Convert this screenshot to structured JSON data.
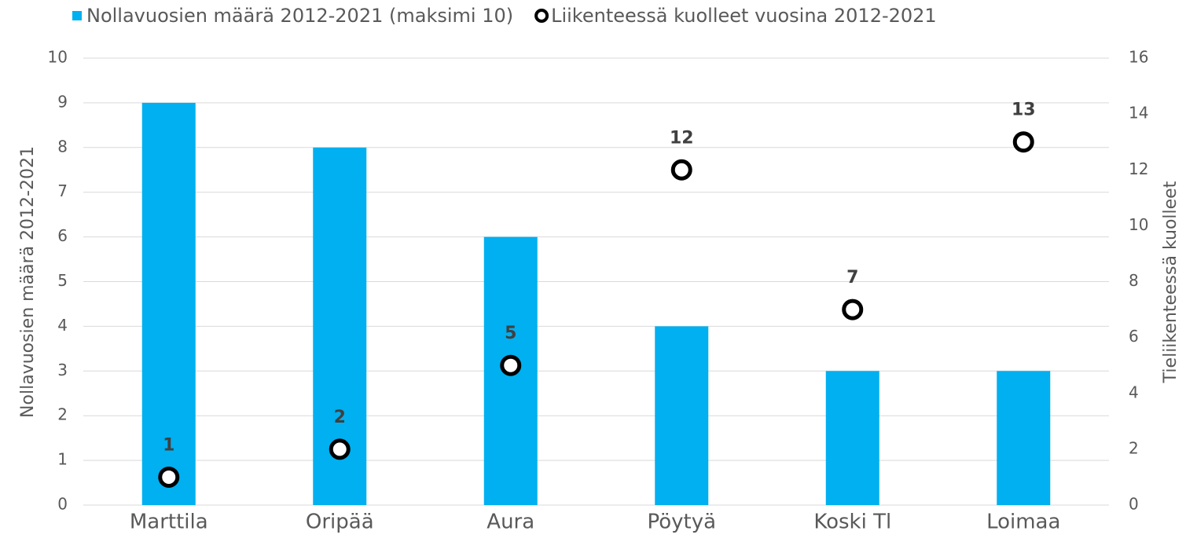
{
  "chart_data": {
    "type": "bar",
    "categories": [
      "Marttila",
      "Oripää",
      "Aura",
      "Pöytyä",
      "Koski Tl",
      "Loimaa"
    ],
    "series": [
      {
        "name": "Nollavuosien määrä 2012-2021 (maksimi 10)",
        "type": "bar",
        "color": "#00b0f0",
        "values": [
          9,
          8,
          6,
          4,
          3,
          3
        ]
      },
      {
        "name": "Liikenteessä kuolleet vuosina 2012-2021",
        "type": "scatter",
        "axis": "y2",
        "color": "#000000",
        "values": [
          1,
          2,
          5,
          12,
          7,
          13
        ]
      }
    ],
    "ylabel": "Nollavuosien määrä 2012-2021",
    "y2label": "Tieliikenteessä kuolleet",
    "ylim": [
      0,
      10
    ],
    "yticks": [
      0,
      1,
      2,
      3,
      4,
      5,
      6,
      7,
      8,
      9,
      10
    ],
    "y2lim": [
      0,
      16
    ],
    "y2ticks": [
      0,
      2,
      4,
      6,
      8,
      10,
      12,
      14,
      16
    ],
    "grid": true,
    "legend": "top"
  }
}
